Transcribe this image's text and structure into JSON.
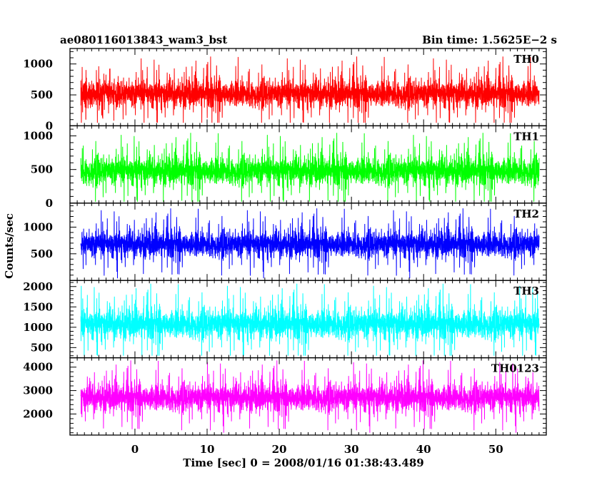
{
  "chart_data": {
    "type": "line",
    "title": "ae080116013843_wam3_bst",
    "bin_time": "Bin time: 1.5625E−2 s",
    "xlabel": "Time [sec] 0 = 2008/01/16 01:38:43.489",
    "ylabel": "Counts/sec",
    "xlim": [
      -9,
      57
    ],
    "x_ticks": [
      0,
      10,
      20,
      30,
      40,
      50
    ],
    "x_range_data": [
      -7.5,
      56
    ],
    "x_step": 0.015625,
    "panels": [
      {
        "label": "TH0",
        "color": "#ff0000",
        "ylim": [
          0,
          1250
        ],
        "y_ticks": [
          0,
          500,
          1000
        ],
        "mean": 520,
        "spread": 170,
        "min": 50,
        "max": 1250
      },
      {
        "label": "TH1",
        "color": "#00ff00",
        "ylim": [
          0,
          1150
        ],
        "y_ticks": [
          0,
          500,
          1000
        ],
        "mean": 480,
        "spread": 160,
        "min": 20,
        "max": 1150
      },
      {
        "label": "TH2",
        "color": "#0000ff",
        "ylim": [
          0,
          1450
        ],
        "y_ticks": [
          500,
          1000
        ],
        "mean": 680,
        "spread": 190,
        "min": 40,
        "max": 1450
      },
      {
        "label": "TH3",
        "color": "#00ffff",
        "ylim": [
          250,
          2150
        ],
        "y_ticks": [
          500,
          1000,
          1500,
          2000
        ],
        "mean": 1080,
        "spread": 280,
        "min": 300,
        "max": 2100
      },
      {
        "label": "TH0123",
        "color": "#ff00ff",
        "ylim": [
          1100,
          4400
        ],
        "y_ticks": [
          2000,
          3000,
          4000
        ],
        "mean": 2700,
        "spread": 450,
        "min": 1200,
        "max": 4300
      }
    ]
  }
}
